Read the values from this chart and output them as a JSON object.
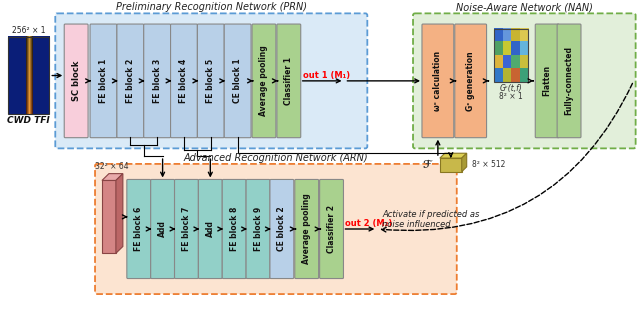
{
  "title_prn": "Preliminary Recognition Network (PRN)",
  "title_nan": "Noise-Aware Network (NAN)",
  "title_arn": "Advanced Recognition Network (ARN)",
  "fig_bg": "#ffffff",
  "prn_box_color": "#daeaf7",
  "prn_box_edge": "#5b9bd5",
  "nan_box_color": "#e2efda",
  "nan_box_edge": "#70ad47",
  "arn_box_color": "#fce4d1",
  "arn_box_edge": "#ed7d31",
  "sc_block_color": "#f8cedb",
  "fe_block_color": "#b8d0e8",
  "green_block_color": "#a9d18e",
  "orange_block_color": "#f4b183",
  "teal_block_color": "#92d0c8",
  "input_label": "CWD TFI",
  "input_dim": "256² × 1",
  "arn_dim": "32² × 64",
  "feature_label": "ℱ",
  "feature_dim": "8² × 512",
  "gc_tf_label": "Gᶜ(t,f)",
  "gc_dim": "8² × 1",
  "out1_label": "out 1 (M₁)",
  "out2_label": "out 2 (M₂)",
  "activate_text": "Activate if predicted as\nnoise influenced"
}
